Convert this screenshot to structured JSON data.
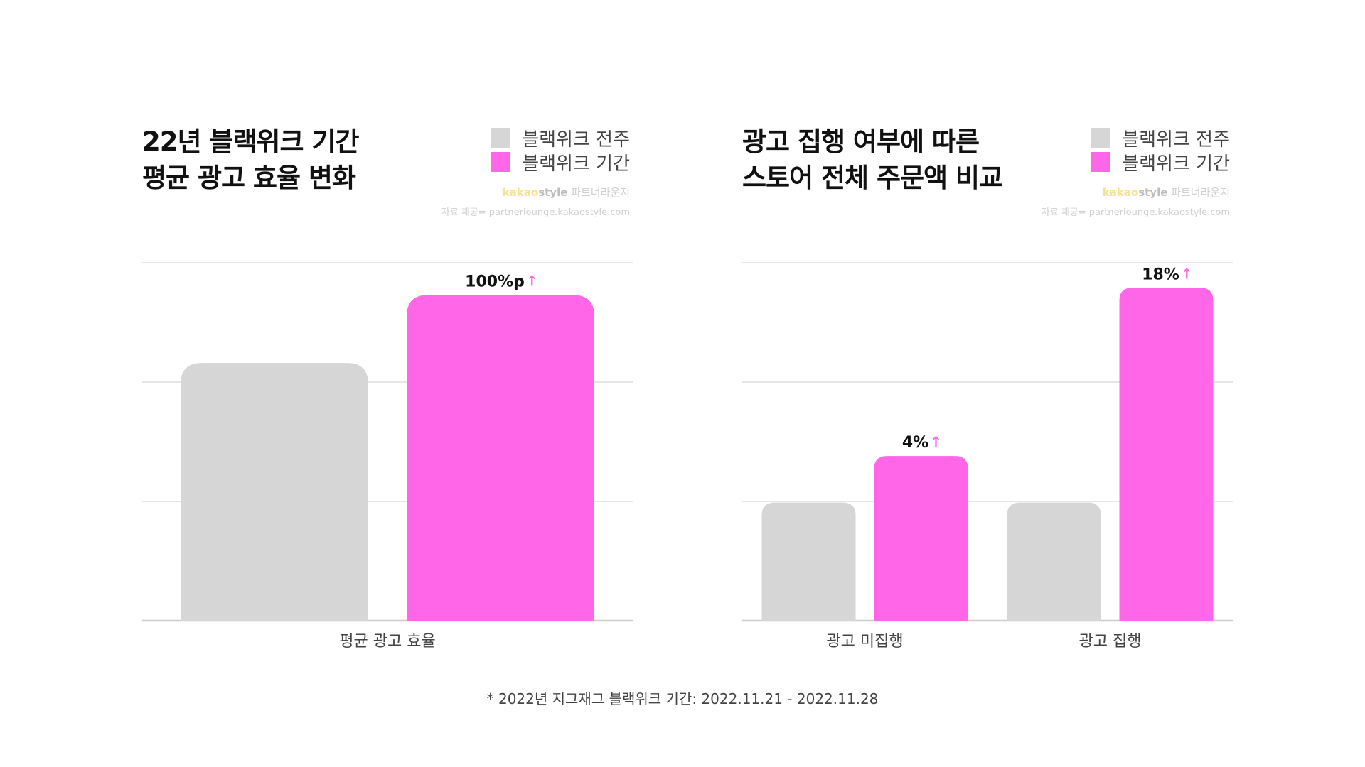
{
  "colors": {
    "before": "#d6d6d6",
    "during": "#ff66e8",
    "arrow": "#ff66e8",
    "grid": "#dddddd"
  },
  "legend": [
    {
      "label": "블랙위크 전주",
      "color": "#d6d6d6"
    },
    {
      "label": "블랙위크 기간",
      "color": "#ff66e8"
    }
  ],
  "brand": {
    "kakao": "kakao",
    "style": "style",
    "partner": " 파트너라운지"
  },
  "source": "자료 제공= partnerlounge.kakaostyle.com",
  "arrow_glyph": "↑",
  "chart_data": [
    {
      "type": "bar",
      "title": [
        "22년 블랙위크 기간",
        "평균 광고 효율 변화"
      ],
      "categories": [
        "평균 광고 효율"
      ],
      "series": [
        {
          "name": "블랙위크 전주",
          "values": [
            72
          ]
        },
        {
          "name": "블랙위크 기간",
          "values": [
            91
          ]
        }
      ],
      "annotations": [
        "100%p"
      ],
      "ylim": [
        0,
        100
      ],
      "grid": true,
      "legend_position": "top-right"
    },
    {
      "type": "bar",
      "title": [
        "광고 집행 여부에 따른",
        "스토어 전체 주문액 비교"
      ],
      "categories": [
        "광고 미집행",
        "광고 집행"
      ],
      "series": [
        {
          "name": "블랙위크 전주",
          "values": [
            33,
            33
          ]
        },
        {
          "name": "블랙위크 기간",
          "values": [
            46,
            93
          ]
        }
      ],
      "annotations": [
        "4%",
        "18%"
      ],
      "ylim": [
        0,
        100
      ],
      "grid": true,
      "legend_position": "top-right"
    }
  ],
  "footnote": "* 2022년 지그재그 블랙위크 기간: 2022.11.21 - 2022.11.28"
}
